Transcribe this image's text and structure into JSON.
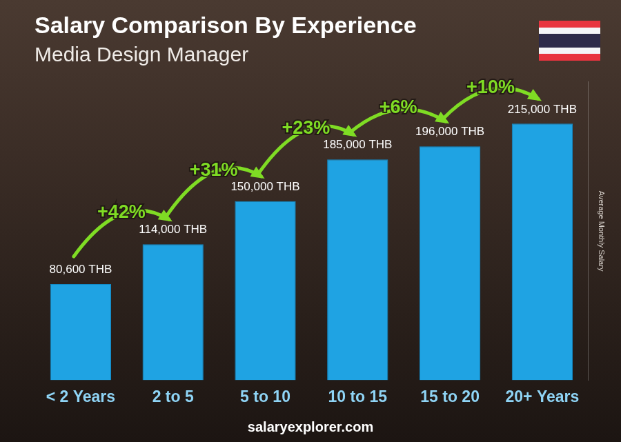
{
  "chart_data": {
    "type": "bar",
    "title": "Salary Comparison By Experience",
    "subtitle": "Media Design Manager",
    "y_label": "Average Monthly Salary",
    "categories": [
      "< 2 Years",
      "2 to 5",
      "5 to 10",
      "10 to 15",
      "15 to 20",
      "20+ Years"
    ],
    "values": [
      80600,
      114000,
      150000,
      185000,
      196000,
      215000
    ],
    "value_labels": [
      "80,600 THB",
      "114,000 THB",
      "150,000 THB",
      "185,000 THB",
      "196,000 THB",
      "215,000 THB"
    ],
    "changes": [
      42,
      31,
      23,
      6,
      10
    ],
    "change_labels": [
      "+42%",
      "+31%",
      "+23%",
      "+6%",
      "+10%"
    ],
    "source": "salaryexplorer.com",
    "color": "#1fa3e3",
    "ylim": [
      0,
      250000
    ],
    "yticks": [
      0,
      250000
    ],
    "grid": false,
    "data_labels": true,
    "tick_labels": "x"
  }
}
